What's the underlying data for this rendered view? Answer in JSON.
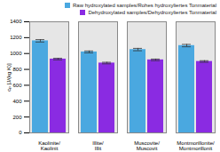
{
  "chart_data": {
    "type": "bar",
    "categories": [
      "Kaolinite/\nKaolinit",
      "Illite/\nIllit",
      "Muscovite/\nMuscovit",
      "Montmorillonite/\nMontmorillonit"
    ],
    "series": [
      {
        "name": "Raw hydroxylated samples/Rohes hydroxyliertes Tonmaterial",
        "color": "#4aa8e0",
        "values": [
          1160,
          1020,
          1050,
          1100
        ],
        "errors": [
          15,
          12,
          15,
          15
        ]
      },
      {
        "name": "Dehydroxylated samples/Dehydroxyliertes Tonmaterial",
        "color": "#8a2be2",
        "values": [
          930,
          880,
          920,
          900
        ],
        "errors": [
          10,
          10,
          10,
          10
        ]
      }
    ],
    "ylabel": "cₚ [J/(kg K)]",
    "ylim": [
      0,
      1400
    ],
    "yticks": [
      0,
      200,
      400,
      600,
      800,
      1000,
      1200,
      1400
    ],
    "grid": true,
    "legend": "top-right"
  }
}
